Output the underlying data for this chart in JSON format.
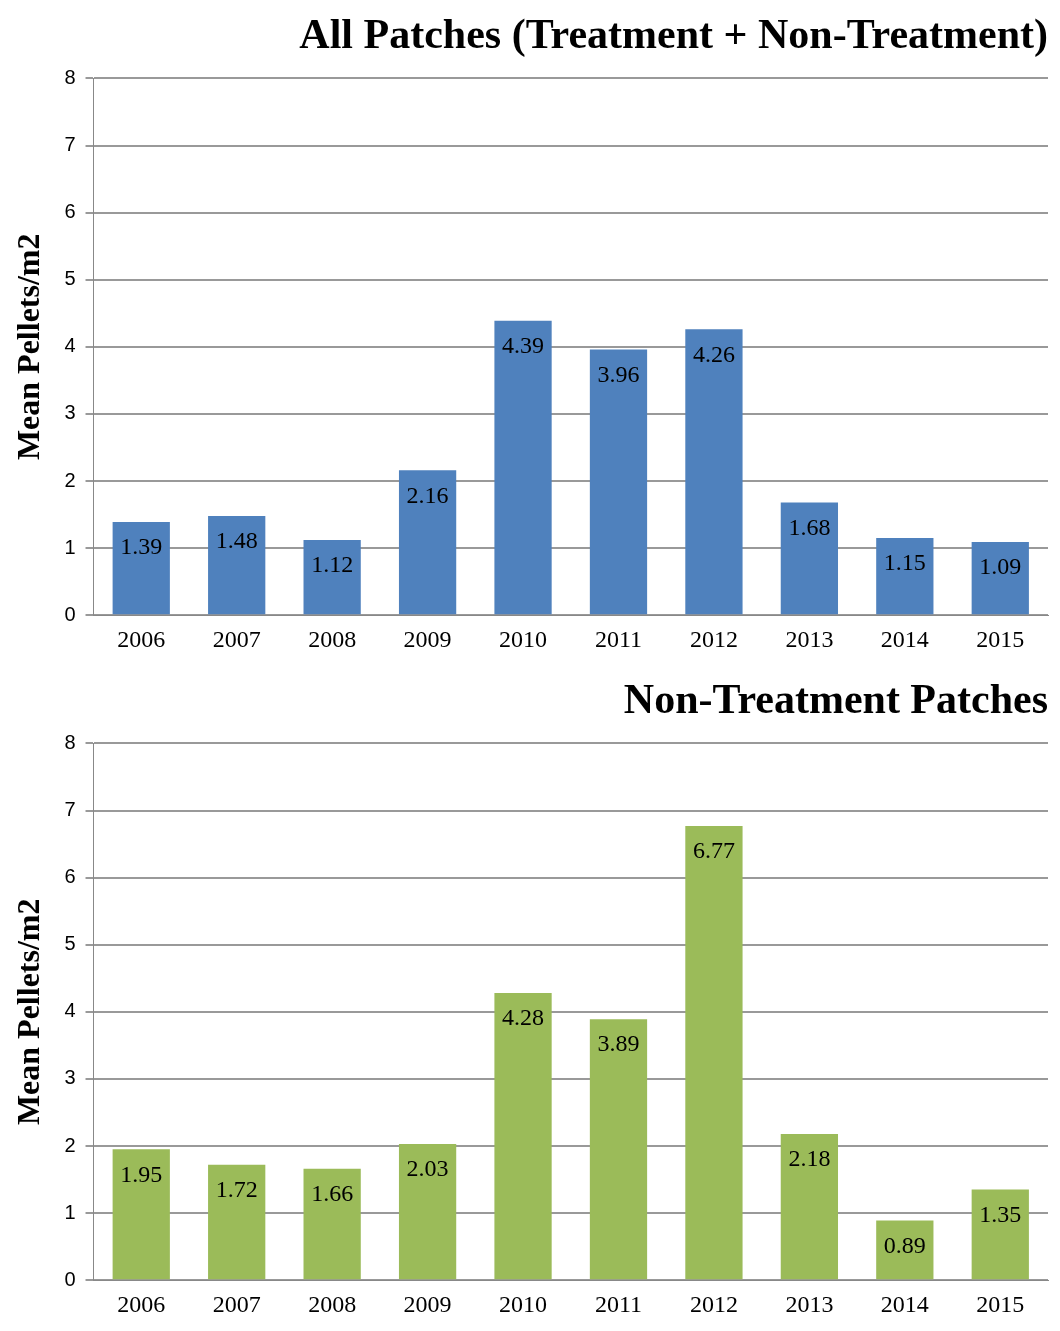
{
  "chart_data": [
    {
      "type": "bar",
      "title": "All Patches (Treatment + Non-Treatment)",
      "ylabel": "Mean Pellets/m2",
      "categories": [
        "2006",
        "2007",
        "2008",
        "2009",
        "2010",
        "2011",
        "2012",
        "2013",
        "2014",
        "2015"
      ],
      "values": [
        1.39,
        1.48,
        1.12,
        2.16,
        4.39,
        3.96,
        4.26,
        1.68,
        1.15,
        1.09
      ],
      "color": "#4f81bd",
      "ylim": [
        0,
        8
      ],
      "yticks": [
        0,
        1,
        2,
        3,
        4,
        5,
        6,
        7,
        8
      ],
      "grid": "y",
      "data_labels": true,
      "legend": false
    },
    {
      "type": "bar",
      "title": "Non-Treatment Patches",
      "ylabel": "Mean Pellets/m2",
      "categories": [
        "2006",
        "2007",
        "2008",
        "2009",
        "2010",
        "2011",
        "2012",
        "2013",
        "2014",
        "2015"
      ],
      "values": [
        1.95,
        1.72,
        1.66,
        2.03,
        4.28,
        3.89,
        6.77,
        2.18,
        0.89,
        1.35
      ],
      "color": "#9bbb59",
      "ylim": [
        0,
        8
      ],
      "yticks": [
        0,
        1,
        2,
        3,
        4,
        5,
        6,
        7,
        8
      ],
      "grid": "y",
      "data_labels": true,
      "legend": false
    }
  ]
}
